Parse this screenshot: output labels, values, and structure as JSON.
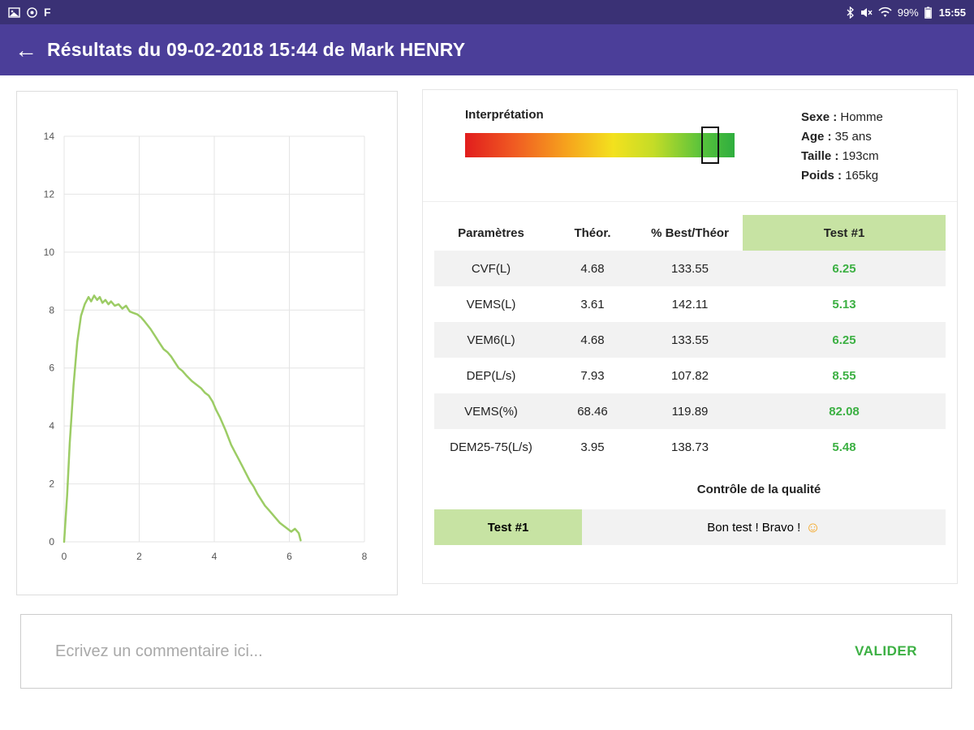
{
  "status_bar": {
    "time": "15:55",
    "battery": "99%",
    "f_icon": "F"
  },
  "app_bar": {
    "title": "Résultats du 09-02-2018 15:44 de Mark HENRY",
    "back_icon": "←"
  },
  "interpretation": {
    "label": "Interprétation",
    "marker_position": 0.91
  },
  "patient": {
    "sexe": {
      "label": "Sexe :",
      "value": "Homme"
    },
    "age": {
      "label": "Age :",
      "value": "35 ans"
    },
    "taille": {
      "label": "Taille :",
      "value": "193cm"
    },
    "poids": {
      "label": "Poids :",
      "value": "165kg"
    }
  },
  "results_table": {
    "headers": [
      "Paramètres",
      "Théor.",
      "% Best/Théor",
      "Test #1"
    ],
    "rows": [
      {
        "param": "CVF(L)",
        "theor": "4.68",
        "best": "133.55",
        "test1": "6.25"
      },
      {
        "param": "VEMS(L)",
        "theor": "3.61",
        "best": "142.11",
        "test1": "5.13"
      },
      {
        "param": "VEM6(L)",
        "theor": "4.68",
        "best": "133.55",
        "test1": "6.25"
      },
      {
        "param": "DEP(L/s)",
        "theor": "7.93",
        "best": "107.82",
        "test1": "8.55"
      },
      {
        "param": "VEMS(%)",
        "theor": "68.46",
        "best": "119.89",
        "test1": "82.08"
      },
      {
        "param": "DEM25-75(L/s)",
        "theor": "3.95",
        "best": "138.73",
        "test1": "5.48"
      }
    ]
  },
  "quality": {
    "title": "Contrôle de la qualité",
    "test_label": "Test #1",
    "message": "Bon test ! Bravo !",
    "emoji": "☺"
  },
  "comment": {
    "placeholder": "Ecrivez un commentaire ici...",
    "submit_label": "VALIDER"
  },
  "colors": {
    "app_bar": "#4b3e99",
    "status_bar": "#3a3175",
    "value_green": "#3cb043",
    "test_header_bg": "#c7e3a3",
    "chart_line": "#9ccc65"
  },
  "chart_data": {
    "type": "line",
    "title": "",
    "xlabel": "",
    "ylabel": "",
    "xlim": [
      0,
      8
    ],
    "ylim": [
      0,
      14
    ],
    "x_ticks": [
      0,
      2,
      4,
      6,
      8
    ],
    "y_ticks": [
      0,
      2,
      4,
      6,
      8,
      10,
      12,
      14
    ],
    "grid": true,
    "line_color": "#9ccc65",
    "x": [
      0,
      0.08,
      0.15,
      0.25,
      0.35,
      0.45,
      0.55,
      0.65,
      0.72,
      0.8,
      0.88,
      0.95,
      1.02,
      1.1,
      1.18,
      1.25,
      1.35,
      1.45,
      1.55,
      1.65,
      1.75,
      1.85,
      1.95,
      2.05,
      2.15,
      2.3,
      2.45,
      2.55,
      2.65,
      2.75,
      2.85,
      2.95,
      3.05,
      3.15,
      3.25,
      3.4,
      3.55,
      3.65,
      3.75,
      3.85,
      3.95,
      4.05,
      4.15,
      4.3,
      4.45,
      4.55,
      4.65,
      4.75,
      4.85,
      4.95,
      5.05,
      5.15,
      5.25,
      5.35,
      5.45,
      5.55,
      5.65,
      5.75,
      5.85,
      5.95,
      6.05,
      6.15,
      6.25,
      6.3
    ],
    "y": [
      0,
      1.6,
      3.4,
      5.4,
      6.9,
      7.8,
      8.2,
      8.45,
      8.3,
      8.5,
      8.35,
      8.45,
      8.25,
      8.35,
      8.2,
      8.3,
      8.15,
      8.2,
      8.05,
      8.15,
      7.95,
      7.9,
      7.85,
      7.75,
      7.6,
      7.35,
      7.05,
      6.85,
      6.65,
      6.55,
      6.4,
      6.2,
      6.0,
      5.9,
      5.75,
      5.55,
      5.4,
      5.3,
      5.15,
      5.05,
      4.85,
      4.55,
      4.3,
      3.85,
      3.35,
      3.1,
      2.85,
      2.6,
      2.35,
      2.1,
      1.9,
      1.65,
      1.45,
      1.25,
      1.1,
      0.95,
      0.8,
      0.65,
      0.55,
      0.45,
      0.35,
      0.45,
      0.3,
      0.05
    ]
  }
}
